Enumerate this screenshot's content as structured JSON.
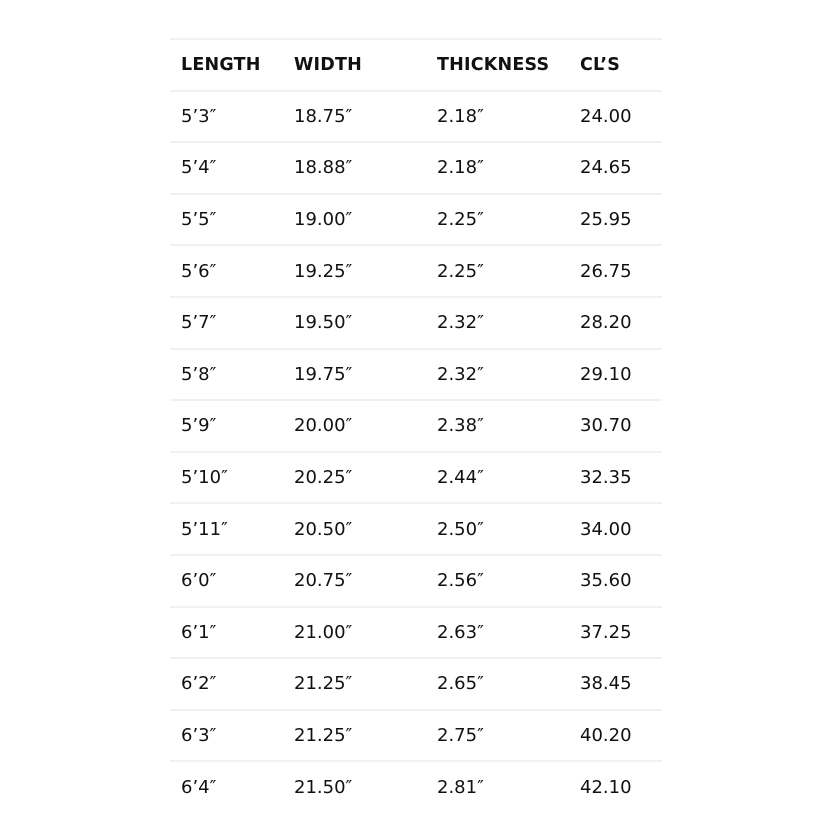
{
  "table": {
    "headers": [
      "LENGTH",
      "WIDTH",
      "THICKNESS",
      "CL’S"
    ],
    "rows": [
      [
        "5’3″",
        "18.75″",
        "2.18″",
        "24.00"
      ],
      [
        "5’4″",
        "18.88″",
        "2.18″",
        "24.65"
      ],
      [
        "5’5″",
        "19.00″",
        "2.25″",
        "25.95"
      ],
      [
        "5’6″",
        "19.25″",
        "2.25″",
        "26.75"
      ],
      [
        "5’7″",
        "19.50″",
        "2.32″",
        "28.20"
      ],
      [
        "5’8″",
        "19.75″",
        "2.32″",
        "29.10"
      ],
      [
        "5’9″",
        "20.00″",
        "2.38″",
        "30.70"
      ],
      [
        "5’10″",
        "20.25″",
        "2.44″",
        "32.35"
      ],
      [
        "5’11″",
        "20.50″",
        "2.50″",
        "34.00"
      ],
      [
        "6’0″",
        "20.75″",
        "2.56″",
        "35.60"
      ],
      [
        "6’1″",
        "21.00″",
        "2.63″",
        "37.25"
      ],
      [
        "6’2″",
        "21.25″",
        "2.65″",
        "38.45"
      ],
      [
        "6’3″",
        "21.25″",
        "2.75″",
        "40.20"
      ],
      [
        "6’4″",
        "21.50″",
        "2.81″",
        "42.10"
      ]
    ]
  }
}
